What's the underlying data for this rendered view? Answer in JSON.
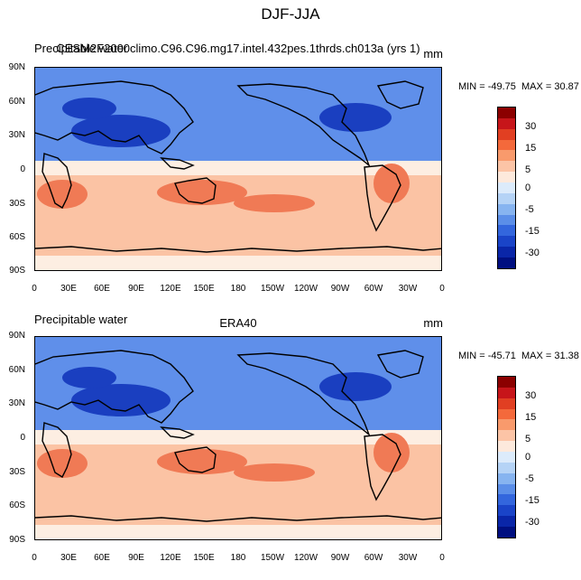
{
  "title": "DJF-JJA",
  "panels": [
    {
      "variable": "Precipitable water",
      "case": "CESM2F2000climo.C96.C96.mg17.intel.432pes.1thrds.ch013a (yrs 1)",
      "units": "mm",
      "min_label": "MIN = -49.75",
      "max_label": "MAX =  30.87",
      "min": -49.75,
      "max": 30.87
    },
    {
      "variable": "Precipitable water",
      "case": "ERA40",
      "units": "mm",
      "min_label": "MIN = -45.71",
      "max_label": "MAX =  31.38",
      "min": -45.71,
      "max": 31.38
    }
  ],
  "lat_ticks": [
    "90N",
    "60N",
    "30N",
    "0",
    "30S",
    "60S",
    "90S"
  ],
  "lon_ticks": [
    "0",
    "30E",
    "60E",
    "90E",
    "120E",
    "150E",
    "180",
    "150W",
    "120W",
    "90W",
    "60W",
    "30W",
    "0"
  ],
  "colorbar": {
    "labels": [
      "30",
      "15",
      "5",
      "0",
      "-5",
      "-15",
      "-30"
    ],
    "colors": [
      "#8b0000",
      "#c7151a",
      "#e13f22",
      "#f4693b",
      "#f99a6c",
      "#fcc4a6",
      "#fde9dc",
      "#dcebfb",
      "#b5d3f6",
      "#87b4f0",
      "#5b8ee8",
      "#3366dd",
      "#1a44c8",
      "#0a26a8",
      "#000f80"
    ]
  },
  "colors": {
    "warm": "#f07a55",
    "warm_light": "#fbc3a4",
    "cool": "#5f8fea",
    "cool_deep": "#1a3fc0",
    "neutral": "#fdeee2",
    "coast": "#000000"
  }
}
